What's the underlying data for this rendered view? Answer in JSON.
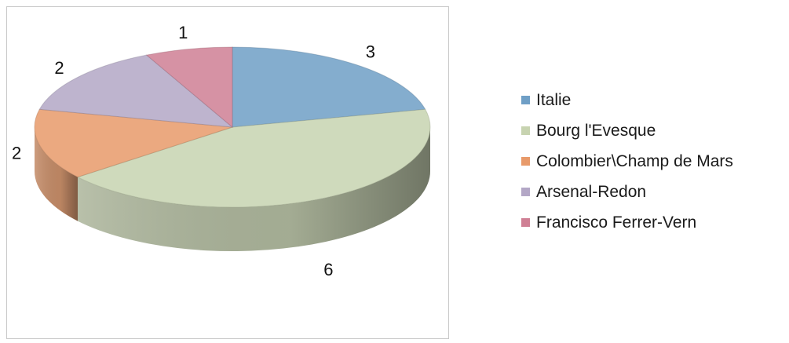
{
  "chart_data": {
    "type": "pie",
    "three_d": true,
    "title": "",
    "categories": [
      "Italie",
      "Bourg l'Evesque",
      "Colombier\\Champ de Mars",
      "Arsenal-Redon",
      "Francisco Ferrer-Vern"
    ],
    "values": [
      3,
      6,
      2,
      2,
      1
    ],
    "data_labels": [
      "3",
      "6",
      "2",
      "2",
      "1"
    ],
    "colors": [
      "#6f9fc6",
      "#c7d3b0",
      "#e89a6a",
      "#b3a7c6",
      "#cf7f94"
    ],
    "legend_position": "right",
    "start_angle": "12 o'clock, clockwise"
  }
}
